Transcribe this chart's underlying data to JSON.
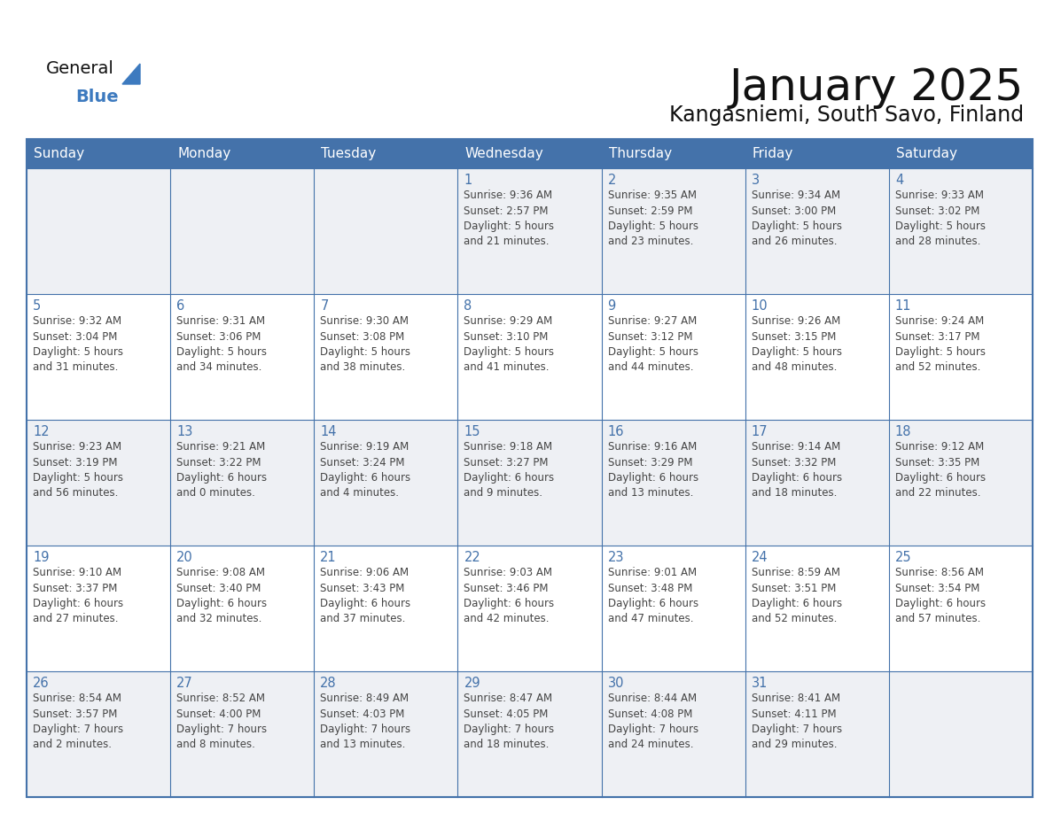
{
  "title": "January 2025",
  "subtitle": "Kangasniemi, South Savo, Finland",
  "days_of_week": [
    "Sunday",
    "Monday",
    "Tuesday",
    "Wednesday",
    "Thursday",
    "Friday",
    "Saturday"
  ],
  "header_bg_color": "#4472aa",
  "header_text_color": "#ffffff",
  "cell_bg_white": "#ffffff",
  "cell_bg_gray": "#eef0f4",
  "border_color": "#4472aa",
  "day_number_color": "#4472aa",
  "cell_text_color": "#444444",
  "title_color": "#111111",
  "subtitle_color": "#111111",
  "logo_general_color": "#111111",
  "logo_blue_color": "#3d7abf",
  "calendar_data": [
    [
      null,
      null,
      null,
      {
        "day": 1,
        "sunrise": "9:36 AM",
        "sunset": "2:57 PM",
        "daylight": "5 hours and 21 minutes."
      },
      {
        "day": 2,
        "sunrise": "9:35 AM",
        "sunset": "2:59 PM",
        "daylight": "5 hours and 23 minutes."
      },
      {
        "day": 3,
        "sunrise": "9:34 AM",
        "sunset": "3:00 PM",
        "daylight": "5 hours and 26 minutes."
      },
      {
        "day": 4,
        "sunrise": "9:33 AM",
        "sunset": "3:02 PM",
        "daylight": "5 hours and 28 minutes."
      }
    ],
    [
      {
        "day": 5,
        "sunrise": "9:32 AM",
        "sunset": "3:04 PM",
        "daylight": "5 hours and 31 minutes."
      },
      {
        "day": 6,
        "sunrise": "9:31 AM",
        "sunset": "3:06 PM",
        "daylight": "5 hours and 34 minutes."
      },
      {
        "day": 7,
        "sunrise": "9:30 AM",
        "sunset": "3:08 PM",
        "daylight": "5 hours and 38 minutes."
      },
      {
        "day": 8,
        "sunrise": "9:29 AM",
        "sunset": "3:10 PM",
        "daylight": "5 hours and 41 minutes."
      },
      {
        "day": 9,
        "sunrise": "9:27 AM",
        "sunset": "3:12 PM",
        "daylight": "5 hours and 44 minutes."
      },
      {
        "day": 10,
        "sunrise": "9:26 AM",
        "sunset": "3:15 PM",
        "daylight": "5 hours and 48 minutes."
      },
      {
        "day": 11,
        "sunrise": "9:24 AM",
        "sunset": "3:17 PM",
        "daylight": "5 hours and 52 minutes."
      }
    ],
    [
      {
        "day": 12,
        "sunrise": "9:23 AM",
        "sunset": "3:19 PM",
        "daylight": "5 hours and 56 minutes."
      },
      {
        "day": 13,
        "sunrise": "9:21 AM",
        "sunset": "3:22 PM",
        "daylight": "6 hours and 0 minutes."
      },
      {
        "day": 14,
        "sunrise": "9:19 AM",
        "sunset": "3:24 PM",
        "daylight": "6 hours and 4 minutes."
      },
      {
        "day": 15,
        "sunrise": "9:18 AM",
        "sunset": "3:27 PM",
        "daylight": "6 hours and 9 minutes."
      },
      {
        "day": 16,
        "sunrise": "9:16 AM",
        "sunset": "3:29 PM",
        "daylight": "6 hours and 13 minutes."
      },
      {
        "day": 17,
        "sunrise": "9:14 AM",
        "sunset": "3:32 PM",
        "daylight": "6 hours and 18 minutes."
      },
      {
        "day": 18,
        "sunrise": "9:12 AM",
        "sunset": "3:35 PM",
        "daylight": "6 hours and 22 minutes."
      }
    ],
    [
      {
        "day": 19,
        "sunrise": "9:10 AM",
        "sunset": "3:37 PM",
        "daylight": "6 hours and 27 minutes."
      },
      {
        "day": 20,
        "sunrise": "9:08 AM",
        "sunset": "3:40 PM",
        "daylight": "6 hours and 32 minutes."
      },
      {
        "day": 21,
        "sunrise": "9:06 AM",
        "sunset": "3:43 PM",
        "daylight": "6 hours and 37 minutes."
      },
      {
        "day": 22,
        "sunrise": "9:03 AM",
        "sunset": "3:46 PM",
        "daylight": "6 hours and 42 minutes."
      },
      {
        "day": 23,
        "sunrise": "9:01 AM",
        "sunset": "3:48 PM",
        "daylight": "6 hours and 47 minutes."
      },
      {
        "day": 24,
        "sunrise": "8:59 AM",
        "sunset": "3:51 PM",
        "daylight": "6 hours and 52 minutes."
      },
      {
        "day": 25,
        "sunrise": "8:56 AM",
        "sunset": "3:54 PM",
        "daylight": "6 hours and 57 minutes."
      }
    ],
    [
      {
        "day": 26,
        "sunrise": "8:54 AM",
        "sunset": "3:57 PM",
        "daylight": "7 hours and 2 minutes."
      },
      {
        "day": 27,
        "sunrise": "8:52 AM",
        "sunset": "4:00 PM",
        "daylight": "7 hours and 8 minutes."
      },
      {
        "day": 28,
        "sunrise": "8:49 AM",
        "sunset": "4:03 PM",
        "daylight": "7 hours and 13 minutes."
      },
      {
        "day": 29,
        "sunrise": "8:47 AM",
        "sunset": "4:05 PM",
        "daylight": "7 hours and 18 minutes."
      },
      {
        "day": 30,
        "sunrise": "8:44 AM",
        "sunset": "4:08 PM",
        "daylight": "7 hours and 24 minutes."
      },
      {
        "day": 31,
        "sunrise": "8:41 AM",
        "sunset": "4:11 PM",
        "daylight": "7 hours and 29 minutes."
      },
      null
    ]
  ]
}
